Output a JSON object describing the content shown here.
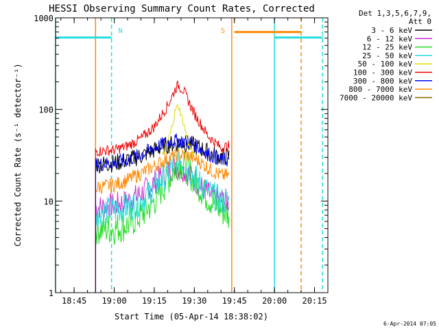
{
  "chart_data": {
    "type": "line",
    "title": "HESSI Observing Summary Count Rates, Corrected",
    "xlabel": "Start Time (05-Apr-14 18:38:02)",
    "ylabel": "Corrected Count Rate (s⁻¹ detector⁻¹)",
    "timestamp": "6-Apr-2014 07:05",
    "yscale": "log",
    "ylim": [
      1,
      1000
    ],
    "xlim_minutes": [
      "18:38",
      "20:20"
    ],
    "x_ticks": [
      "18:45",
      "19:00",
      "19:15",
      "19:30",
      "19:45",
      "20:00",
      "20:15"
    ],
    "y_ticks": [
      "1",
      "10",
      "100",
      "1000"
    ],
    "legend": {
      "header": [
        "Det 1,3,5,6,7,9,",
        "Att 0"
      ],
      "placement": "right, outside plot"
    },
    "series": [
      {
        "name": "3 - 6 keV",
        "color": "#000000",
        "points": [
          [
            "18:53",
            25
          ],
          [
            "19:00",
            26
          ],
          [
            "19:05",
            28
          ],
          [
            "19:10",
            31
          ],
          [
            "19:15",
            36
          ],
          [
            "19:20",
            41
          ],
          [
            "19:24",
            43
          ],
          [
            "19:28",
            42
          ],
          [
            "19:32",
            38
          ],
          [
            "19:36",
            33
          ],
          [
            "19:40",
            30
          ],
          [
            "19:43",
            31
          ]
        ]
      },
      {
        "name": "6 - 12 keV",
        "color": "#d02ad0",
        "points": [
          [
            "18:53",
            8.5
          ],
          [
            "19:00",
            9
          ],
          [
            "19:05",
            10
          ],
          [
            "19:10",
            12
          ],
          [
            "19:15",
            16
          ],
          [
            "19:20",
            21
          ],
          [
            "19:23",
            24
          ],
          [
            "19:26",
            22
          ],
          [
            "19:30",
            17
          ],
          [
            "19:35",
            12
          ],
          [
            "19:40",
            10
          ],
          [
            "19:43",
            10
          ]
        ]
      },
      {
        "name": "12 - 25 keV",
        "color": "#22dd22",
        "points": [
          [
            "18:53",
            5
          ],
          [
            "19:00",
            5
          ],
          [
            "19:05",
            5.5
          ],
          [
            "19:10",
            7
          ],
          [
            "19:15",
            10
          ],
          [
            "19:20",
            17
          ],
          [
            "19:24",
            26
          ],
          [
            "19:27",
            23
          ],
          [
            "19:30",
            17
          ],
          [
            "19:35",
            11
          ],
          [
            "19:40",
            8
          ],
          [
            "19:43",
            7
          ]
        ]
      },
      {
        "name": "25 - 50 keV",
        "color": "#22dddd",
        "points": [
          [
            "18:53",
            7.5
          ],
          [
            "19:00",
            8
          ],
          [
            "19:05",
            8.5
          ],
          [
            "19:10",
            10
          ],
          [
            "19:15",
            14
          ],
          [
            "19:20",
            20
          ],
          [
            "19:24",
            30
          ],
          [
            "19:27",
            24
          ],
          [
            "19:31",
            17
          ],
          [
            "19:36",
            12
          ],
          [
            "19:40",
            10
          ],
          [
            "19:43",
            10
          ]
        ]
      },
      {
        "name": "50 - 100 keV",
        "color": "#dddd00",
        "points": [
          [
            "19:18",
            30
          ],
          [
            "19:21",
            55
          ],
          [
            "19:23",
            100
          ],
          [
            "19:24",
            110
          ],
          [
            "19:26",
            70
          ],
          [
            "19:28",
            40
          ],
          [
            "19:30",
            31
          ]
        ]
      },
      {
        "name": "100 - 300 keV",
        "color": "#ee0000",
        "points": [
          [
            "18:53",
            35
          ],
          [
            "19:00",
            36
          ],
          [
            "19:05",
            40
          ],
          [
            "19:10",
            48
          ],
          [
            "19:15",
            65
          ],
          [
            "19:20",
            110
          ],
          [
            "19:23",
            170
          ],
          [
            "19:24",
            185
          ],
          [
            "19:26",
            160
          ],
          [
            "19:30",
            90
          ],
          [
            "19:35",
            52
          ],
          [
            "19:40",
            38
          ],
          [
            "19:43",
            40
          ]
        ]
      },
      {
        "name": "300 - 800 keV",
        "color": "#0000ee",
        "points": [
          [
            "18:53",
            25
          ],
          [
            "19:00",
            26
          ],
          [
            "19:05",
            28
          ],
          [
            "19:10",
            32
          ],
          [
            "19:15",
            38
          ],
          [
            "19:20",
            44
          ],
          [
            "19:24",
            46
          ],
          [
            "19:28",
            44
          ],
          [
            "19:32",
            38
          ],
          [
            "19:36",
            32
          ],
          [
            "19:40",
            28
          ],
          [
            "19:43",
            28
          ]
        ]
      },
      {
        "name": "800 - 7000 keV",
        "color": "#ff8800",
        "points": [
          [
            "18:53",
            14
          ],
          [
            "19:00",
            15
          ],
          [
            "19:05",
            17
          ],
          [
            "19:10",
            20
          ],
          [
            "19:15",
            24
          ],
          [
            "19:20",
            29
          ],
          [
            "19:24",
            32
          ],
          [
            "19:28",
            31
          ],
          [
            "19:32",
            27
          ],
          [
            "19:36",
            22
          ],
          [
            "19:40",
            19
          ],
          [
            "19:43",
            19
          ]
        ]
      },
      {
        "name": "7000 - 20000 keV",
        "color": "#886600",
        "points": []
      }
    ],
    "attenuator_markers": {
      "solid_cyan": [
        "18:38",
        "20:00"
      ],
      "dashed_cyan": [
        "18:59",
        "20:18"
      ],
      "solid_orange": [
        "18:53",
        "19:44"
      ],
      "dashed_orange": [
        "20:10"
      ],
      "labels": [
        {
          "text": "N",
          "at": "19:00"
        },
        {
          "text": "S",
          "at": "19:42"
        }
      ],
      "cyan_bars": [
        [
          "18:38",
          "18:59"
        ],
        [
          "20:00",
          "20:18"
        ]
      ],
      "orange_bar": [
        "19:45",
        "20:10"
      ],
      "bar_level": 700
    }
  }
}
